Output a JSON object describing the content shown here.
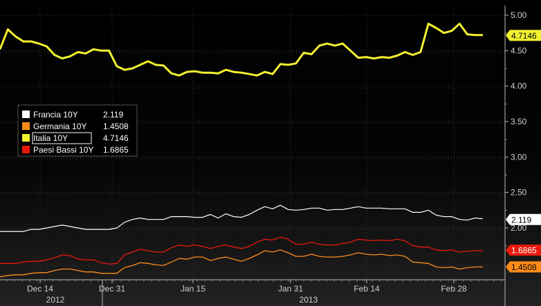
{
  "chart_data": {
    "type": "line",
    "y_axis": {
      "position": "right",
      "ylim": [
        1.3,
        5.1
      ],
      "ticks": [
        "5.00",
        "4.50",
        "4.00",
        "3.50",
        "3.00",
        "2.50",
        "2.00"
      ]
    },
    "x_axis": {
      "ticks": [
        "Dec 14",
        "Dec 31",
        "Jan 15",
        "Jan 31",
        "Feb 14",
        "Feb 28"
      ],
      "years": [
        "2012",
        "2013"
      ]
    },
    "grid": true,
    "legend_position": "upper-left",
    "series": [
      {
        "name": "Francia 10Y",
        "last": "2.119",
        "color": "#ffffff",
        "values": [
          1.95,
          1.95,
          1.95,
          1.95,
          1.98,
          1.98,
          2.0,
          2.02,
          2.04,
          2.02,
          2.0,
          1.98,
          1.98,
          1.98,
          1.98,
          2.0,
          2.08,
          2.12,
          2.14,
          2.12,
          2.12,
          2.12,
          2.16,
          2.16,
          2.16,
          2.15,
          2.15,
          2.19,
          2.14,
          2.2,
          2.16,
          2.15,
          2.19,
          2.25,
          2.3,
          2.27,
          2.32,
          2.26,
          2.25,
          2.26,
          2.28,
          2.28,
          2.25,
          2.26,
          2.26,
          2.28,
          2.3,
          2.28,
          2.28,
          2.28,
          2.27,
          2.27,
          2.27,
          2.22,
          2.22,
          2.25,
          2.18,
          2.16,
          2.16,
          2.12,
          2.11,
          2.14,
          2.13
        ]
      },
      {
        "name": "Germania 10Y",
        "last": "1.4508",
        "color": "#ff8c1a",
        "values": [
          1.31,
          1.33,
          1.34,
          1.34,
          1.36,
          1.37,
          1.37,
          1.4,
          1.42,
          1.42,
          1.4,
          1.38,
          1.38,
          1.36,
          1.36,
          1.36,
          1.44,
          1.47,
          1.51,
          1.5,
          1.48,
          1.47,
          1.52,
          1.57,
          1.56,
          1.59,
          1.59,
          1.54,
          1.57,
          1.59,
          1.56,
          1.53,
          1.57,
          1.62,
          1.68,
          1.66,
          1.69,
          1.65,
          1.6,
          1.6,
          1.63,
          1.6,
          1.59,
          1.59,
          1.6,
          1.62,
          1.65,
          1.63,
          1.62,
          1.63,
          1.61,
          1.62,
          1.6,
          1.52,
          1.51,
          1.5,
          1.45,
          1.44,
          1.45,
          1.42,
          1.44,
          1.45,
          1.45
        ]
      },
      {
        "name": "Italia 10Y",
        "last": "4.7146",
        "color": "#f2f230",
        "values": [
          4.52,
          4.8,
          4.7,
          4.63,
          4.63,
          4.6,
          4.56,
          4.44,
          4.39,
          4.42,
          4.48,
          4.46,
          4.52,
          4.5,
          4.5,
          4.28,
          4.23,
          4.25,
          4.3,
          4.35,
          4.3,
          4.29,
          4.18,
          4.15,
          4.2,
          4.21,
          4.19,
          4.19,
          4.18,
          4.23,
          4.2,
          4.19,
          4.17,
          4.15,
          4.2,
          4.17,
          4.31,
          4.3,
          4.32,
          4.47,
          4.45,
          4.57,
          4.6,
          4.57,
          4.6,
          4.5,
          4.4,
          4.41,
          4.39,
          4.41,
          4.4,
          4.43,
          4.48,
          4.44,
          4.48,
          4.88,
          4.82,
          4.75,
          4.78,
          4.88,
          4.73,
          4.72,
          4.72
        ]
      },
      {
        "name": "Paesi Bassi 10Y",
        "last": "1.6865",
        "color": "#e8190c",
        "values": [
          1.5,
          1.5,
          1.5,
          1.52,
          1.53,
          1.53,
          1.55,
          1.58,
          1.62,
          1.61,
          1.56,
          1.55,
          1.55,
          1.51,
          1.49,
          1.5,
          1.62,
          1.66,
          1.7,
          1.68,
          1.66,
          1.66,
          1.72,
          1.76,
          1.74,
          1.76,
          1.74,
          1.71,
          1.74,
          1.76,
          1.73,
          1.71,
          1.74,
          1.8,
          1.84,
          1.83,
          1.87,
          1.84,
          1.77,
          1.77,
          1.8,
          1.77,
          1.76,
          1.76,
          1.78,
          1.8,
          1.84,
          1.83,
          1.82,
          1.83,
          1.82,
          1.84,
          1.82,
          1.75,
          1.73,
          1.73,
          1.69,
          1.68,
          1.69,
          1.66,
          1.67,
          1.68,
          1.68
        ]
      }
    ]
  }
}
